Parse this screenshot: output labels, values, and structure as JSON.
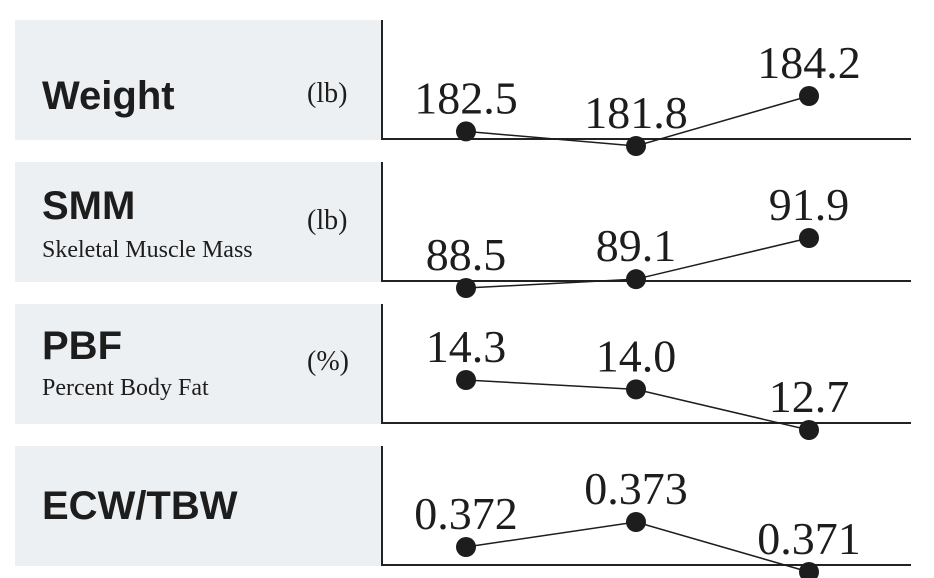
{
  "chart_data": [
    {
      "type": "line",
      "title": "Weight",
      "subtitle": "",
      "unit": "(lb)",
      "values": [
        182.5,
        181.8,
        184.2
      ],
      "value_labels": [
        "182.5",
        "181.8",
        "184.2"
      ],
      "ylim": [
        181.8,
        184.2
      ]
    },
    {
      "type": "line",
      "title": "SMM",
      "subtitle": "Skeletal Muscle Mass",
      "unit": "(lb)",
      "values": [
        88.5,
        89.1,
        91.9
      ],
      "value_labels": [
        "88.5",
        "89.1",
        "91.9"
      ],
      "ylim": [
        88.5,
        91.9
      ]
    },
    {
      "type": "line",
      "title": "PBF",
      "subtitle": "Percent Body Fat",
      "unit": "(%)",
      "values": [
        14.3,
        14.0,
        12.7
      ],
      "value_labels": [
        "14.3",
        "14.0",
        "12.7"
      ],
      "ylim": [
        12.7,
        14.3
      ]
    },
    {
      "type": "line",
      "title": "ECW/TBW",
      "subtitle": "",
      "unit": "",
      "values": [
        0.372,
        0.373,
        0.371
      ],
      "value_labels": [
        "0.372",
        "0.373",
        "0.371"
      ],
      "ylim": [
        0.371,
        0.373
      ]
    }
  ],
  "colors": {
    "panel": "#edf0f3",
    "ink": "#1d1d1d"
  }
}
